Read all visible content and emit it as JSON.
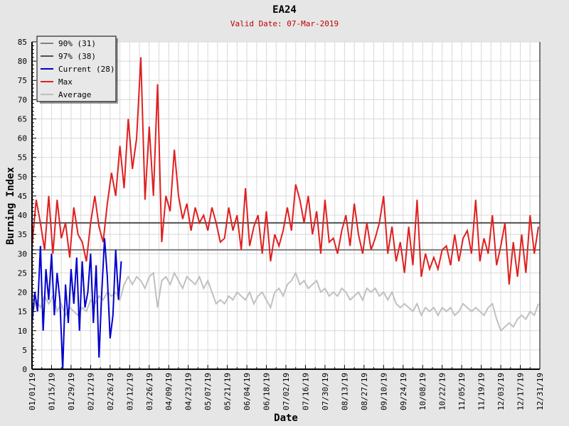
{
  "chart_data": {
    "type": "line",
    "title": "EA24",
    "subtitle": "Valid Date: 07-Mar-2019",
    "xlabel": "Date",
    "ylabel": "Burning Index",
    "ylim": [
      0,
      85
    ],
    "yticks": [
      0,
      5,
      10,
      15,
      20,
      25,
      30,
      35,
      40,
      45,
      50,
      55,
      60,
      65,
      70,
      75,
      80,
      85
    ],
    "xlim_days": [
      0,
      364
    ],
    "xtick_labels": [
      "01/01/19",
      "01/15/19",
      "01/29/19",
      "02/12/19",
      "02/26/19",
      "03/12/19",
      "03/26/19",
      "04/09/19",
      "04/23/19",
      "05/07/19",
      "05/21/19",
      "06/04/19",
      "06/18/19",
      "07/02/19",
      "07/16/19",
      "07/30/19",
      "08/13/19",
      "08/27/19",
      "09/10/19",
      "09/24/19",
      "10/08/19",
      "10/22/19",
      "11/05/19",
      "11/19/19",
      "12/03/19",
      "12/17/19",
      "12/31/19"
    ],
    "grid": true,
    "legend_position": "top-left",
    "legend": [
      {
        "label": "90% (31)",
        "color": "#808080"
      },
      {
        "label": "97% (38)",
        "color": "#505050"
      },
      {
        "label": "Current (28)",
        "color": "#0000cc"
      },
      {
        "label": "Max",
        "color": "#e02020"
      },
      {
        "label": "Average",
        "color": "#c0c0c0"
      }
    ],
    "thresholds": [
      {
        "name": "90%",
        "value": 31,
        "color": "#808080"
      },
      {
        "name": "97%",
        "value": 38,
        "color": "#505050"
      }
    ],
    "series": [
      {
        "name": "Max",
        "color": "#e02020",
        "day_step": 3,
        "values": [
          32,
          44,
          38,
          31,
          45,
          30,
          44,
          34,
          38,
          29,
          42,
          35,
          33,
          28,
          38,
          45,
          37,
          33,
          43,
          51,
          45,
          58,
          47,
          65,
          52,
          60,
          81,
          44,
          63,
          45,
          74,
          33,
          45,
          41,
          57,
          45,
          39,
          43,
          36,
          42,
          38,
          40,
          36,
          42,
          38,
          33,
          34,
          42,
          36,
          40,
          31,
          47,
          32,
          37,
          40,
          30,
          41,
          28,
          35,
          32,
          36,
          42,
          36,
          48,
          44,
          38,
          45,
          35,
          41,
          30,
          44,
          33,
          34,
          30,
          36,
          40,
          32,
          43,
          35,
          30,
          38,
          31,
          34,
          38,
          45,
          30,
          37,
          28,
          33,
          25,
          37,
          27,
          44,
          24,
          30,
          26,
          29,
          26,
          31,
          32,
          27,
          35,
          28,
          34,
          36,
          30,
          44,
          28,
          34,
          30,
          40,
          27,
          32,
          38,
          22,
          33,
          24,
          35,
          25,
          40,
          30,
          37
        ]
      },
      {
        "name": "Average",
        "color": "#c0c0c0",
        "day_step": 3,
        "values": [
          14,
          18,
          16,
          19,
          17,
          19,
          15,
          17,
          14,
          16,
          15,
          14,
          16,
          15,
          18,
          17,
          19,
          18,
          20,
          19,
          20,
          18,
          22,
          24,
          22,
          24,
          23,
          21,
          24,
          25,
          16,
          23,
          24,
          22,
          25,
          23,
          21,
          24,
          23,
          22,
          24,
          21,
          23,
          20,
          17,
          18,
          17,
          19,
          18,
          20,
          19,
          18,
          20,
          17,
          19,
          20,
          18,
          16,
          20,
          21,
          19,
          22,
          23,
          25,
          22,
          23,
          21,
          22,
          23,
          20,
          21,
          19,
          20,
          19,
          21,
          20,
          18,
          19,
          20,
          18,
          21,
          20,
          21,
          19,
          20,
          18,
          20,
          17,
          16,
          17,
          16,
          15,
          17,
          14,
          16,
          15,
          16,
          14,
          16,
          15,
          16,
          14,
          15,
          17,
          16,
          15,
          16,
          15,
          14,
          16,
          17,
          13,
          10,
          11,
          12,
          11,
          13,
          14,
          13,
          15,
          14,
          17
        ]
      },
      {
        "name": "Current",
        "color": "#0000cc",
        "day_step": 2,
        "values": [
          12,
          20,
          15,
          32,
          10,
          26,
          18,
          30,
          14,
          25,
          18,
          0,
          22,
          12,
          26,
          17,
          29,
          10,
          28,
          16,
          20,
          30,
          12,
          27,
          3,
          20,
          34,
          24,
          8,
          14,
          31,
          18,
          28
        ]
      }
    ]
  }
}
